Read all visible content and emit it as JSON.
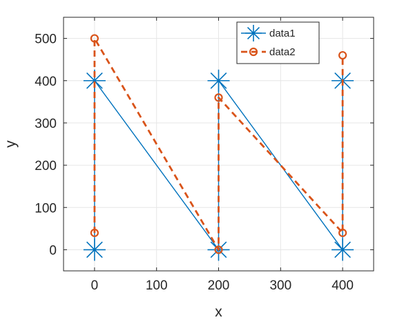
{
  "chart_data": {
    "type": "line",
    "title": "",
    "xlabel": "x",
    "ylabel": "y",
    "xlim": [
      -50,
      450
    ],
    "ylim": [
      -50,
      550
    ],
    "xticks": [
      0,
      100,
      200,
      300,
      400
    ],
    "yticks": [
      0,
      100,
      200,
      300,
      400,
      500
    ],
    "grid": true,
    "legend_location": "top-right",
    "series": [
      {
        "name": "data1",
        "color": "#0072BD",
        "line_style": "solid",
        "marker": "asterisk",
        "points": [
          [
            0,
            0
          ],
          [
            0,
            400
          ],
          [
            200,
            0
          ],
          [
            200,
            400
          ],
          [
            400,
            0
          ],
          [
            400,
            400
          ]
        ]
      },
      {
        "name": "data2",
        "color": "#D95319",
        "line_style": "dashed",
        "marker": "circle",
        "points": [
          [
            0,
            40
          ],
          [
            0,
            500
          ],
          [
            200,
            0
          ],
          [
            200,
            360
          ],
          [
            400,
            40
          ],
          [
            400,
            460
          ]
        ]
      }
    ]
  }
}
